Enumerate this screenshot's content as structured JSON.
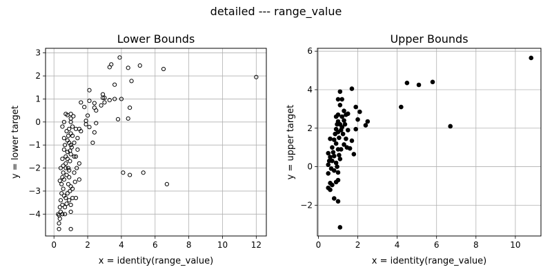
{
  "suptitle": "detailed --- range_value",
  "chart_data": [
    {
      "type": "scatter",
      "title": "Lower Bounds",
      "xlabel": "x = identity(range_value)",
      "ylabel": "y = lower target",
      "xlim": [
        -0.5,
        12.6
      ],
      "ylim": [
        -4.95,
        3.2
      ],
      "xticks": [
        0,
        2,
        4,
        6,
        8,
        10,
        12
      ],
      "yticks": [
        -4,
        -3,
        -2,
        -1,
        0,
        1,
        2,
        3
      ],
      "grid": true,
      "marker": "open-circle",
      "marker_color": "#000000",
      "points": [
        [
          12.0,
          1.95
        ],
        [
          6.7,
          -2.7
        ],
        [
          6.5,
          2.3
        ],
        [
          5.3,
          -2.2
        ],
        [
          5.1,
          2.45
        ],
        [
          4.6,
          1.78
        ],
        [
          4.5,
          0.62
        ],
        [
          4.5,
          -2.3
        ],
        [
          4.4,
          0.15
        ],
        [
          4.4,
          2.35
        ],
        [
          4.1,
          -2.2
        ],
        [
          4.0,
          1.0
        ],
        [
          3.9,
          2.8
        ],
        [
          3.8,
          0.12
        ],
        [
          3.6,
          1.62
        ],
        [
          3.6,
          1.0
        ],
        [
          3.4,
          2.5
        ],
        [
          3.3,
          2.38
        ],
        [
          3.3,
          0.95
        ],
        [
          3.0,
          1.05
        ],
        [
          2.9,
          1.2
        ],
        [
          2.9,
          1.05
        ],
        [
          3.0,
          0.85
        ],
        [
          2.8,
          0.72
        ],
        [
          2.5,
          -0.05
        ],
        [
          2.4,
          0.62
        ],
        [
          2.4,
          0.82
        ],
        [
          2.5,
          0.5
        ],
        [
          2.4,
          -0.45
        ],
        [
          2.3,
          -0.9
        ],
        [
          2.1,
          1.38
        ],
        [
          2.1,
          0.92
        ],
        [
          2.0,
          0.28
        ],
        [
          2.1,
          -0.22
        ],
        [
          1.9,
          -0.1
        ],
        [
          1.8,
          0.65
        ],
        [
          1.9,
          0.05
        ],
        [
          1.6,
          0.85
        ],
        [
          1.6,
          -0.4
        ],
        [
          1.5,
          -0.3
        ],
        [
          1.4,
          -0.7
        ],
        [
          1.4,
          -1.2
        ],
        [
          1.5,
          -1.8
        ],
        [
          1.5,
          -2.5
        ],
        [
          1.3,
          -3.3
        ],
        [
          1.2,
          -1.5
        ],
        [
          1.2,
          -2.2
        ],
        [
          1.1,
          -0.2
        ],
        [
          1.0,
          0.35
        ],
        [
          1.0,
          0.15
        ],
        [
          1.0,
          0.0
        ],
        [
          1.0,
          -0.5
        ],
        [
          1.0,
          -1.0
        ],
        [
          1.0,
          -1.4
        ],
        [
          1.0,
          -3.6
        ],
        [
          1.0,
          -4.65
        ],
        [
          1.0,
          -3.9
        ],
        [
          1.1,
          -3.3
        ],
        [
          1.0,
          -2.8
        ],
        [
          0.9,
          -2.4
        ],
        [
          0.9,
          -2.1
        ],
        [
          0.9,
          -0.3
        ],
        [
          0.8,
          -0.8
        ],
        [
          0.8,
          0.3
        ],
        [
          0.7,
          0.35
        ],
        [
          0.6,
          0.0
        ],
        [
          0.5,
          -0.2
        ],
        [
          0.3,
          -4.05
        ],
        [
          0.25,
          -4.0
        ],
        [
          0.3,
          -4.4
        ],
        [
          0.35,
          -4.2
        ],
        [
          0.3,
          -4.65
        ],
        [
          0.4,
          -3.9
        ],
        [
          0.5,
          -3.6
        ],
        [
          0.45,
          -3.1
        ],
        [
          0.35,
          -2.55
        ],
        [
          0.4,
          -2.0
        ],
        [
          0.5,
          -1.6
        ],
        [
          0.6,
          -1.2
        ],
        [
          0.65,
          -1.0
        ],
        [
          0.7,
          -1.5
        ],
        [
          0.55,
          -2.2
        ],
        [
          0.6,
          -2.5
        ],
        [
          0.55,
          -2.9
        ],
        [
          0.7,
          -3.3
        ],
        [
          0.65,
          -3.7
        ],
        [
          0.8,
          -3.1
        ],
        [
          0.85,
          -2.7
        ],
        [
          0.75,
          -2.3
        ],
        [
          0.7,
          -1.8
        ],
        [
          0.8,
          -1.3
        ],
        [
          0.9,
          -0.9
        ],
        [
          0.85,
          -0.6
        ],
        [
          0.75,
          -0.4
        ],
        [
          0.6,
          -0.7
        ],
        [
          0.55,
          -1.9
        ],
        [
          0.45,
          -2.7
        ],
        [
          0.4,
          -3.4
        ],
        [
          0.35,
          -3.7
        ],
        [
          0.5,
          -4.0
        ],
        [
          0.65,
          -4.0
        ],
        [
          0.75,
          -3.55
        ],
        [
          0.85,
          -2.0
        ],
        [
          0.95,
          -1.7
        ],
        [
          1.05,
          -1.1
        ],
        [
          1.1,
          -0.6
        ],
        [
          1.2,
          -0.9
        ],
        [
          1.3,
          -1.5
        ],
        [
          1.25,
          -2.6
        ],
        [
          1.1,
          -2.9
        ],
        [
          0.95,
          -3.0
        ],
        [
          0.9,
          -3.4
        ],
        [
          0.6,
          -3.2
        ],
        [
          0.5,
          -2.4
        ],
        [
          0.7,
          -2.0
        ],
        [
          0.8,
          -1.6
        ],
        [
          0.95,
          -1.25
        ],
        [
          1.3,
          -0.3
        ],
        [
          1.15,
          0.25
        ],
        [
          1.35,
          -2.0
        ]
      ]
    },
    {
      "type": "scatter",
      "title": "Upper Bounds",
      "xlabel": "x = identity(range_value)",
      "ylabel": "y = upper target",
      "xlim": [
        -0.05,
        11.3
      ],
      "ylim": [
        -3.6,
        6.15
      ],
      "xticks": [
        0,
        2,
        4,
        6,
        8,
        10
      ],
      "yticks": [
        -2,
        0,
        2,
        4,
        6
      ],
      "grid": true,
      "marker": "filled-circle",
      "marker_color": "#000000",
      "points": [
        [
          10.8,
          5.65
        ],
        [
          6.7,
          2.1
        ],
        [
          5.8,
          4.4
        ],
        [
          5.1,
          4.25
        ],
        [
          4.5,
          4.35
        ],
        [
          4.2,
          3.1
        ],
        [
          2.5,
          2.35
        ],
        [
          2.4,
          2.15
        ],
        [
          2.1,
          2.85
        ],
        [
          2.0,
          2.45
        ],
        [
          1.9,
          1.95
        ],
        [
          1.9,
          3.1
        ],
        [
          1.8,
          0.65
        ],
        [
          1.7,
          4.05
        ],
        [
          1.7,
          1.35
        ],
        [
          1.6,
          0.95
        ],
        [
          1.5,
          2.75
        ],
        [
          1.5,
          1.9
        ],
        [
          1.4,
          1.45
        ],
        [
          1.3,
          2.9
        ],
        [
          1.3,
          2.4
        ],
        [
          1.3,
          1.15
        ],
        [
          1.2,
          3.5
        ],
        [
          1.1,
          3.9
        ],
        [
          1.1,
          3.2
        ],
        [
          1.1,
          2.2
        ],
        [
          1.1,
          0.4
        ],
        [
          1.0,
          3.5
        ],
        [
          1.0,
          2.7
        ],
        [
          1.0,
          1.8
        ],
        [
          1.0,
          0.9
        ],
        [
          1.0,
          -0.3
        ],
        [
          1.0,
          -0.7
        ],
        [
          1.0,
          -1.8
        ],
        [
          1.1,
          -3.15
        ],
        [
          0.9,
          -0.8
        ],
        [
          0.8,
          -1.65
        ],
        [
          0.7,
          -0.95
        ],
        [
          0.6,
          -0.85
        ],
        [
          0.5,
          -1.1
        ],
        [
          0.6,
          -1.2
        ],
        [
          0.5,
          0.7
        ],
        [
          0.5,
          0.1
        ],
        [
          0.5,
          -0.35
        ],
        [
          0.6,
          0.5
        ],
        [
          0.6,
          1.45
        ],
        [
          0.7,
          1.0
        ],
        [
          0.7,
          0.3
        ],
        [
          0.8,
          1.4
        ],
        [
          0.8,
          0.55
        ],
        [
          0.8,
          -0.2
        ],
        [
          0.9,
          1.95
        ],
        [
          0.9,
          2.6
        ],
        [
          0.9,
          1.2
        ],
        [
          0.9,
          0.2
        ],
        [
          0.85,
          1.7
        ],
        [
          0.95,
          2.2
        ],
        [
          1.05,
          1.5
        ],
        [
          1.15,
          1.9
        ],
        [
          1.2,
          2.6
        ],
        [
          1.25,
          1.7
        ],
        [
          1.35,
          2.2
        ],
        [
          1.4,
          2.7
        ],
        [
          1.45,
          1.0
        ],
        [
          1.15,
          0.9
        ],
        [
          1.05,
          0.6
        ],
        [
          0.95,
          0.0
        ],
        [
          0.75,
          0.75
        ],
        [
          0.65,
          -0.1
        ],
        [
          0.55,
          0.3
        ],
        [
          1.2,
          2.05
        ],
        [
          1.0,
          2.35
        ]
      ]
    }
  ]
}
